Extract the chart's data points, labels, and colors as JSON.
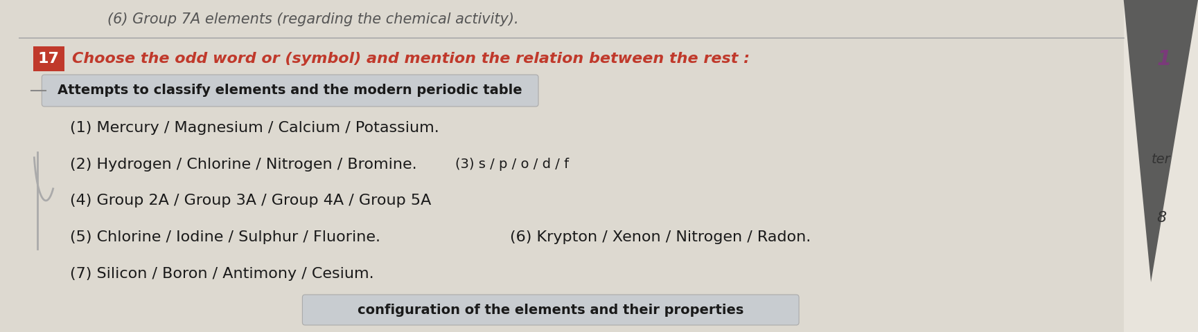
{
  "background_color": "#ddd9d0",
  "top_text": "(6) Group 7A elements (regarding the chemical activity).",
  "question_number": "17",
  "question_number_bg": "#c0392b",
  "question_number_color": "#ffffff",
  "question_text": "Choose the odd word or (symbol) and mention the relation between the rest :",
  "question_color": "#c0392b",
  "banner_text": "Attempts to classify elements and the modern periodic table",
  "banner_bg": "#c8ccd0",
  "banner_border": "#aaaaaa",
  "banner_text_color": "#1a1a1a",
  "line1": "(1) Mercury / Magnesium / Calcium / Potassium.",
  "line2": "(2) Hydrogen / Chlorine / Nitrogen / Bromine.",
  "line3_inline": "(3) s / p / o / d / f",
  "line4": "(4) Group 2A / Group 3A / Group 4A / Group 5A",
  "line5": "(5) Chlorine / Iodine / Sulphur / Fluorine.",
  "line6_inline": "(6) Krypton / Xenon / Nitrogen / Radon.",
  "line7": "(7) Silicon / Boron / Antimony / Cesium.",
  "footer_text": "configuration of the elements and their properties",
  "footer_bg": "#c8ccd0",
  "body_text_color": "#1a1a1a",
  "font_size_body": 16,
  "font_size_question": 16,
  "font_size_banner": 14,
  "right_paper_color": "#e8e4dc",
  "right_note_color": "#6a4a8a",
  "shadow_color": "#555555",
  "sep_line_color": "#aaaaaa",
  "bracket_color": "#aaaaaa"
}
